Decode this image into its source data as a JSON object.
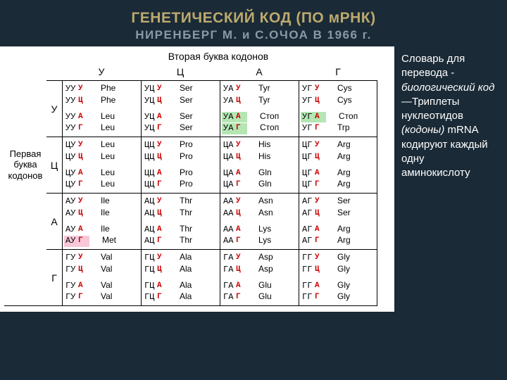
{
  "colors": {
    "background": "#1a2a36",
    "title_color": "#bca96e",
    "subtitle_color": "#8a9aa5",
    "panel_bg": "#ffffff",
    "text": "#000000",
    "third_colors": {
      "У": "#cc0000",
      "Ц": "#cc0000",
      "А": "#cc0000",
      "Г": "#cc0000"
    },
    "highlight_stop": "#b4e6b4",
    "highlight_met": "#f8c8d8",
    "border": "#000000",
    "sidebar_text": "#ffffff"
  },
  "fonts": {
    "title_size": 21,
    "subtitle_size": 17,
    "cell_size": 12,
    "sidebar_size": 15
  },
  "title": "ГЕНЕТИЧЕСКИЙ КОД (ПО мРНК)",
  "subtitle": "НИРЕНБЕРГ М. и С.ОЧОА В 1966 г.",
  "top_label": "Вторая буква кодонов",
  "left_label": "Первая буква кодонов",
  "columns": [
    "У",
    "Ц",
    "А",
    "Г"
  ],
  "rows": [
    "У",
    "Ц",
    "А",
    "Г"
  ],
  "thirds": [
    "У",
    "Ц",
    "А",
    "Г"
  ],
  "table": {
    "У": {
      "У": [
        "Phe",
        "Phe",
        "Leu",
        "Leu"
      ],
      "Ц": [
        "Ser",
        "Ser",
        "Ser",
        "Ser"
      ],
      "А": [
        "Tyr",
        "Tyr",
        "Стоп",
        "Стоп"
      ],
      "Г": [
        "Cys",
        "Cys",
        "Стоп",
        "Trp"
      ]
    },
    "Ц": {
      "У": [
        "Leu",
        "Leu",
        "Leu",
        "Leu"
      ],
      "Ц": [
        "Pro",
        "Pro",
        "Pro",
        "Pro"
      ],
      "А": [
        "His",
        "His",
        "Gln",
        "Gln"
      ],
      "Г": [
        "Arg",
        "Arg",
        "Arg",
        "Arg"
      ]
    },
    "А": {
      "У": [
        "Ile",
        "Ile",
        "Ile",
        "Met"
      ],
      "Ц": [
        "Thr",
        "Thr",
        "Thr",
        "Thr"
      ],
      "А": [
        "Asn",
        "Asn",
        "Lys",
        "Lys"
      ],
      "Г": [
        "Ser",
        "Ser",
        "Arg",
        "Arg"
      ]
    },
    "Г": {
      "У": [
        "Val",
        "Val",
        "Val",
        "Val"
      ],
      "Ц": [
        "Ala",
        "Ala",
        "Ala",
        "Ala"
      ],
      "А": [
        "Asp",
        "Asp",
        "Glu",
        "Glu"
      ],
      "Г": [
        "Gly",
        "Gly",
        "Gly",
        "Gly"
      ]
    }
  },
  "highlights": {
    "stop": [
      [
        "У",
        "А",
        "А"
      ],
      [
        "У",
        "А",
        "Г"
      ],
      [
        "У",
        "Г",
        "А"
      ]
    ],
    "met": [
      [
        "А",
        "У",
        "Г"
      ]
    ]
  },
  "sidebar": {
    "intro": "Словарь для перевода - ",
    "intro_em": "биологический код",
    "dash": "—",
    "main": "Триплеты нуклеотидов",
    "paren_em": "(кодоны)",
    "tail": " mRNA кодируют каждый одну аминокислоту"
  }
}
